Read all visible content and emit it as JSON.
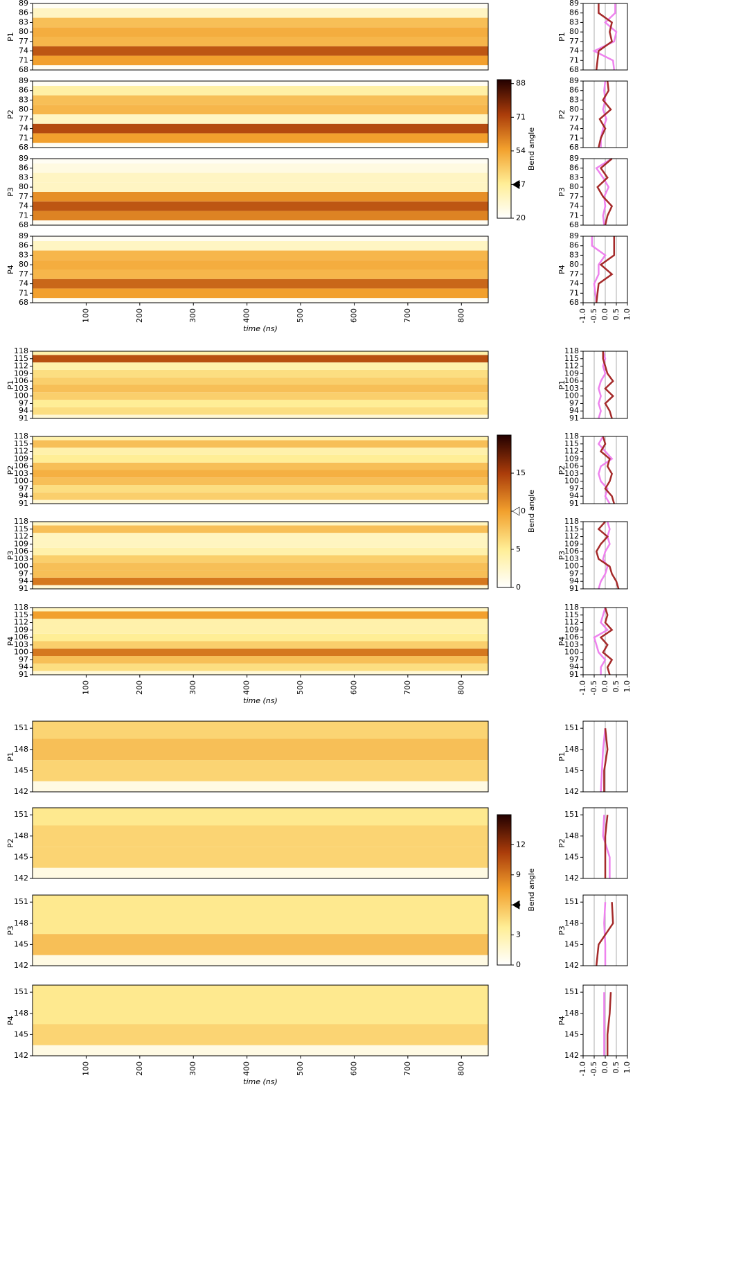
{
  "chart_data": [
    {
      "type": "heatmap",
      "xlabel": "time (ns)",
      "xlim": [
        0,
        850
      ],
      "xticks": [
        100,
        200,
        300,
        400,
        500,
        600,
        700,
        800
      ],
      "ylim": [
        68,
        89
      ],
      "yticks": [
        68,
        71,
        74,
        77,
        80,
        83,
        86,
        89
      ],
      "colorbar": {
        "label": "Bend angle",
        "lim": [
          20,
          90
        ],
        "ticks": [
          20,
          37,
          54,
          71,
          88
        ],
        "marker": 37,
        "marker_color": "#000000"
      },
      "profile_xlim": [
        -1,
        1
      ],
      "profile_xticks": [
        {
          "value": -1,
          "label": "-1.0"
        },
        {
          "value": -0.5,
          "label": "-0.5"
        },
        {
          "value": 0,
          "label": "0.0"
        },
        {
          "value": 0.5,
          "label": "0.5"
        },
        {
          "value": 1,
          "label": "1.0"
        }
      ],
      "panels": [
        {
          "name": "P1",
          "band_values": [
            22,
            55,
            68,
            50,
            52,
            48,
            30,
            22
          ],
          "profile_series": [
            {
              "color": "#ee82ee",
              "values": [
                0.4,
                0.35,
                -0.5,
                0.4,
                0.5,
                0.0,
                0.45,
                0.45
              ]
            },
            {
              "color": "#a52a2a",
              "values": [
                -0.4,
                -0.35,
                -0.3,
                0.3,
                0.2,
                0.3,
                -0.3,
                -0.3
              ]
            }
          ]
        },
        {
          "name": "P2",
          "band_values": [
            22,
            55,
            70,
            30,
            50,
            48,
            35,
            22
          ],
          "profile_series": [
            {
              "color": "#ee82ee",
              "values": [
                -0.2,
                -0.2,
                -0.1,
                0.05,
                -0.1,
                0.0,
                -0.05,
                0.0
              ]
            },
            {
              "color": "#a52a2a",
              "values": [
                -0.3,
                -0.2,
                0.0,
                -0.25,
                0.25,
                -0.1,
                0.15,
                0.1
              ]
            }
          ]
        },
        {
          "name": "P3",
          "band_values": [
            22,
            60,
            68,
            58,
            30,
            30,
            25,
            22
          ],
          "profile_series": [
            {
              "color": "#ee82ee",
              "values": [
                -0.05,
                -0.1,
                0.0,
                -0.05,
                0.15,
                -0.1,
                -0.4,
                0.3
              ]
            },
            {
              "color": "#a52a2a",
              "values": [
                0.0,
                0.1,
                0.3,
                -0.1,
                -0.35,
                0.1,
                -0.2,
                0.3
              ]
            }
          ]
        },
        {
          "name": "P4",
          "band_values": [
            22,
            55,
            65,
            50,
            52,
            50,
            30,
            22
          ],
          "profile_series": [
            {
              "color": "#ee82ee",
              "values": [
                -0.4,
                -0.45,
                -0.5,
                -0.3,
                -0.3,
                0.0,
                -0.6,
                -0.6
              ]
            },
            {
              "color": "#a52a2a",
              "values": [
                -0.4,
                -0.35,
                -0.3,
                0.3,
                -0.2,
                0.4,
                0.4,
                0.4
              ]
            }
          ]
        }
      ]
    },
    {
      "type": "heatmap",
      "xlabel": "time (ns)",
      "xlim": [
        0,
        850
      ],
      "xticks": [
        100,
        200,
        300,
        400,
        500,
        600,
        700,
        800
      ],
      "ylim": [
        91,
        118
      ],
      "yticks": [
        91,
        94,
        97,
        100,
        103,
        106,
        109,
        112,
        115,
        118
      ],
      "colorbar": {
        "label": "Bend angle",
        "lim": [
          0,
          20
        ],
        "ticks": [
          0,
          5,
          10,
          15
        ],
        "marker": 10,
        "marker_color": "#ffffff"
      },
      "profile_xlim": [
        -1,
        1
      ],
      "profile_xticks": [
        {
          "value": -1,
          "label": "-1.0"
        },
        {
          "value": -0.5,
          "label": "-0.5"
        },
        {
          "value": 0,
          "label": "0.0"
        },
        {
          "value": 0.5,
          "label": "0.5"
        },
        {
          "value": 1,
          "label": "1.0"
        }
      ],
      "panels": [
        {
          "name": "P1",
          "band_values": [
            2,
            6,
            5,
            7,
            8,
            7,
            6,
            4,
            14,
            4
          ],
          "profile_series": [
            {
              "color": "#ee82ee",
              "values": [
                -0.3,
                -0.2,
                -0.3,
                -0.2,
                -0.3,
                -0.2,
                0.0,
                -0.1,
                0.0,
                -0.1
              ]
            },
            {
              "color": "#a52a2a",
              "values": [
                0.3,
                0.2,
                0.0,
                0.35,
                0.0,
                0.35,
                0.1,
                0.0,
                -0.1,
                -0.1
              ]
            }
          ]
        },
        {
          "name": "P2",
          "band_values": [
            2,
            7,
            6,
            8,
            9,
            8,
            5,
            4,
            8,
            4
          ],
          "profile_series": [
            {
              "color": "#ee82ee",
              "values": [
                0.2,
                0.0,
                0.1,
                -0.2,
                -0.3,
                -0.2,
                0.3,
                0.0,
                -0.3,
                -0.1
              ]
            },
            {
              "color": "#a52a2a",
              "values": [
                0.4,
                0.3,
                0.0,
                0.2,
                0.3,
                0.1,
                0.2,
                -0.2,
                0.0,
                -0.1
              ]
            }
          ]
        },
        {
          "name": "P3",
          "band_values": [
            2,
            12,
            8,
            8,
            7,
            4,
            3,
            3,
            8,
            3
          ],
          "profile_series": [
            {
              "color": "#ee82ee",
              "values": [
                -0.3,
                -0.2,
                0.0,
                0.1,
                -0.1,
                0.0,
                0.2,
                0.1,
                0.2,
                0.1
              ]
            },
            {
              "color": "#a52a2a",
              "values": [
                0.6,
                0.5,
                0.3,
                0.2,
                -0.3,
                -0.4,
                -0.2,
                0.1,
                -0.3,
                0.0
              ]
            }
          ]
        },
        {
          "name": "P4",
          "band_values": [
            2,
            6,
            8,
            12,
            7,
            5,
            4,
            4,
            10,
            3
          ],
          "profile_series": [
            {
              "color": "#ee82ee",
              "values": [
                -0.2,
                -0.2,
                0.0,
                -0.3,
                -0.4,
                -0.5,
                0.1,
                -0.2,
                -0.1,
                0.0
              ]
            },
            {
              "color": "#a52a2a",
              "values": [
                0.2,
                0.1,
                0.3,
                -0.1,
                0.1,
                -0.2,
                0.3,
                0.0,
                0.1,
                0.0
              ]
            }
          ]
        }
      ]
    },
    {
      "type": "heatmap",
      "xlabel": "time (ns)",
      "xlim": [
        0,
        850
      ],
      "xticks": [
        100,
        200,
        300,
        400,
        500,
        600,
        700,
        800
      ],
      "ylim": [
        142,
        152
      ],
      "yticks": [
        142,
        145,
        148,
        151
      ],
      "colorbar": {
        "label": "Bend angle",
        "lim": [
          0,
          15
        ],
        "ticks": [
          0,
          3,
          6,
          9,
          12
        ],
        "marker": 6,
        "marker_color": "#000000"
      },
      "profile_xlim": [
        -1,
        1
      ],
      "profile_xticks": [
        {
          "value": -1,
          "label": "-1.0"
        },
        {
          "value": -0.5,
          "label": "-0.5"
        },
        {
          "value": 0,
          "label": "0.0"
        },
        {
          "value": 0.5,
          "label": "0.5"
        },
        {
          "value": 1,
          "label": "1.0"
        }
      ],
      "panels": [
        {
          "name": "P1",
          "band_values": [
            1,
            5,
            6,
            5
          ],
          "profile_series": [
            {
              "color": "#ee82ee",
              "values": [
                -0.2,
                -0.15,
                -0.1,
                0.0
              ]
            },
            {
              "color": "#a52a2a",
              "values": [
                -0.05,
                -0.05,
                0.1,
                0.0
              ]
            }
          ]
        },
        {
          "name": "P2",
          "band_values": [
            1,
            5,
            5,
            4
          ],
          "profile_series": [
            {
              "color": "#ee82ee",
              "values": [
                0.2,
                0.2,
                -0.1,
                -0.05
              ]
            },
            {
              "color": "#a52a2a",
              "values": [
                0.0,
                0.0,
                0.0,
                0.1
              ]
            }
          ]
        },
        {
          "name": "P3",
          "band_values": [
            1,
            6,
            4,
            4
          ],
          "profile_series": [
            {
              "color": "#ee82ee",
              "values": [
                0.0,
                0.0,
                -0.05,
                0.0
              ]
            },
            {
              "color": "#a52a2a",
              "values": [
                -0.4,
                -0.3,
                0.35,
                0.3
              ]
            }
          ]
        },
        {
          "name": "P4",
          "band_values": [
            1,
            5,
            4,
            4
          ],
          "profile_series": [
            {
              "color": "#ee82ee",
              "values": [
                -0.05,
                -0.05,
                -0.05,
                -0.05
              ]
            },
            {
              "color": "#a52a2a",
              "values": [
                0.1,
                0.1,
                0.2,
                0.25
              ]
            }
          ]
        }
      ]
    }
  ]
}
